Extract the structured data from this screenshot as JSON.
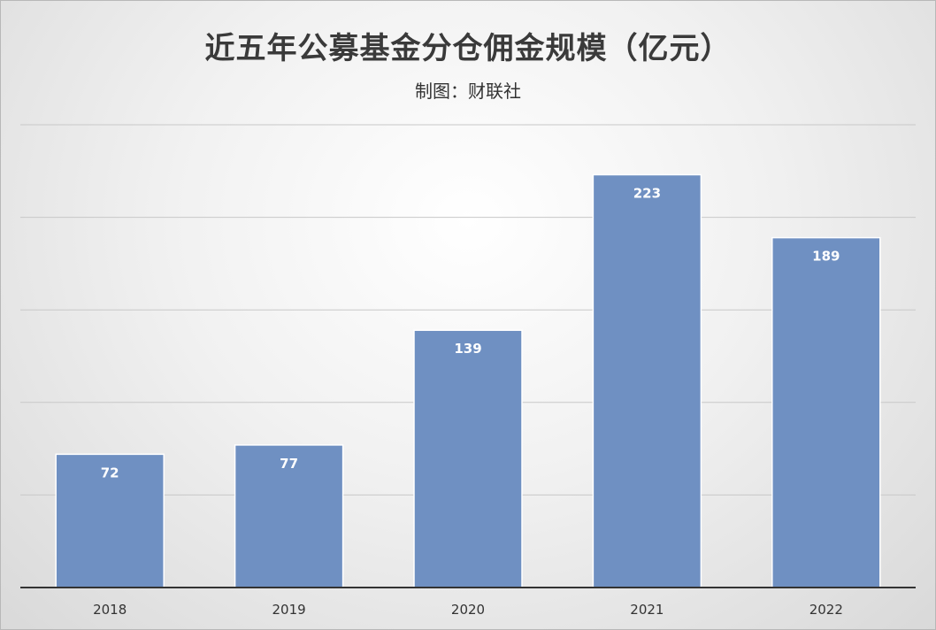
{
  "chart_data": {
    "type": "bar",
    "title": "近五年公募基金分仓佣金规模（亿元）",
    "subtitle": "制图：财联社",
    "categories": [
      "2018",
      "2019",
      "2020",
      "2021",
      "2022"
    ],
    "values": [
      72,
      77,
      139,
      223,
      189
    ],
    "ylim": [
      0,
      250
    ],
    "grid": true,
    "legend": "none",
    "bar_color": "#6f90c2",
    "bar_edge_color": "#ffffff",
    "label_color": "#ffffff",
    "axis_color": "#333333",
    "grid_color": "#c8c8c8"
  }
}
